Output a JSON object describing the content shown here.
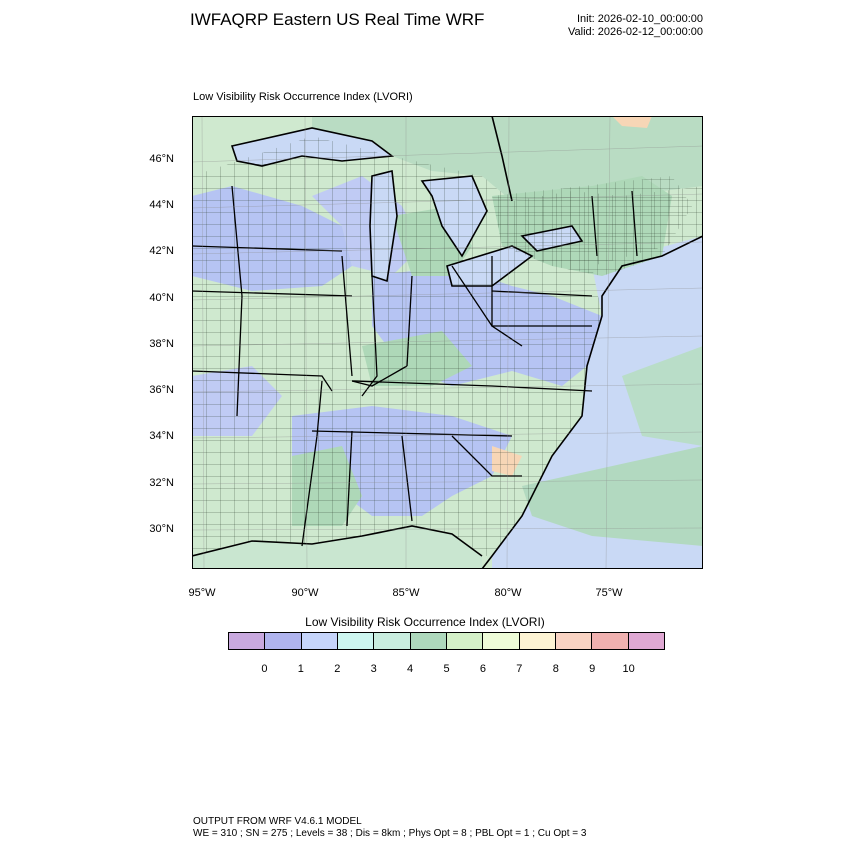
{
  "header": {
    "title": "IWFAQRP Eastern US Real Time WRF",
    "init": "Init: 2026-02-10_00:00:00",
    "valid": "Valid: 2026-02-12_00:00:00"
  },
  "map": {
    "subtitle": "Low Visibility Risk Occurrence Index   (LVORI)",
    "lat_labels": [
      "46°N",
      "44°N",
      "42°N",
      "40°N",
      "38°N",
      "36°N",
      "34°N",
      "32°N",
      "30°N"
    ],
    "lon_labels": [
      "95°W",
      "90°W",
      "85°W",
      "80°W",
      "75°W"
    ],
    "colors": {
      "land_base": "#cfe9cf",
      "water": "#c9d9f5",
      "low_risk": "#b6c4f3",
      "mid_risk": "#aed8b8",
      "high_risk": "#f7d6b6"
    }
  },
  "colorbar": {
    "title": "Low Visibility Risk Occurrence Index  (LVORI)",
    "bins": [
      "#c9a9df",
      "#b0b4ee",
      "#c6d5fb",
      "#cdf6f0",
      "#c9eddf",
      "#aed8bc",
      "#d4f0c8",
      "#eefcd8",
      "#fdf3d3",
      "#f9d3c3",
      "#f0b1b0",
      "#dfa8d3"
    ],
    "labels": [
      "0",
      "1",
      "2",
      "3",
      "4",
      "5",
      "6",
      "7",
      "8",
      "9",
      "10"
    ]
  },
  "footer": {
    "line1": "OUTPUT FROM WRF V4.6.1 MODEL",
    "line2": "WE = 310 ; SN = 275 ; Levels = 38 ; Dis = 8km ; Phys Opt = 8 ; PBL Opt = 1 ; Cu Opt = 3"
  }
}
